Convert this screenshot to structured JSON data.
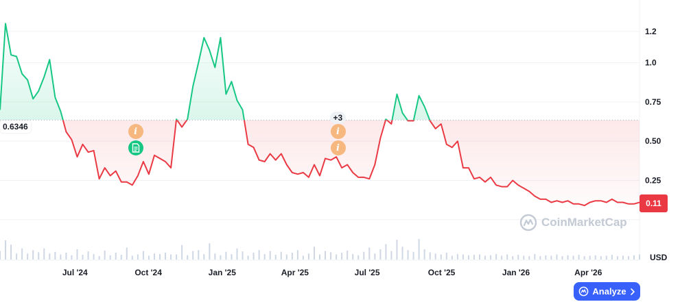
{
  "chart_data": {
    "type": "area",
    "unit_label": "USD",
    "reference_value": 0.6346,
    "reference_label": "0.6346",
    "current_value": 0.11,
    "current_label": "0.11",
    "ylim": [
      -0.25,
      1.4
    ],
    "y_ticks": [
      0.25,
      0.5,
      0.75,
      1.0,
      1.2
    ],
    "y_tick_labels": [
      "0.25",
      "0.50",
      "0.75",
      "1.0",
      "1.2"
    ],
    "xlim": [
      0,
      116
    ],
    "x_ticks": [
      {
        "pos": 13.6,
        "label": "Jul '24"
      },
      {
        "pos": 26.9,
        "label": "Oct '24"
      },
      {
        "pos": 40.3,
        "label": "Jan '25"
      },
      {
        "pos": 53.5,
        "label": "Apr '25"
      },
      {
        "pos": 66.6,
        "label": "Jul '25"
      },
      {
        "pos": 80.1,
        "label": "Oct '25"
      },
      {
        "pos": 93.6,
        "label": "Jan '26"
      },
      {
        "pos": 106.7,
        "label": "Apr '26"
      }
    ],
    "week_index": [
      0,
      1,
      2,
      3,
      4,
      5,
      6,
      7,
      8,
      9,
      10,
      11,
      12,
      13,
      14,
      15,
      16,
      17,
      18,
      19,
      20,
      21,
      22,
      23,
      24,
      25,
      26,
      27,
      28,
      29,
      30,
      31,
      32,
      33,
      34,
      35,
      36,
      37,
      38,
      39,
      40,
      41,
      42,
      43,
      44,
      45,
      46,
      47,
      48,
      49,
      50,
      51,
      52,
      53,
      54,
      55,
      56,
      57,
      58,
      59,
      60,
      61,
      62,
      63,
      64,
      65,
      66,
      67,
      68,
      69,
      70,
      71,
      72,
      73,
      74,
      75,
      76,
      77,
      78,
      79,
      80,
      81,
      82,
      83,
      84,
      85,
      86,
      87,
      88,
      89,
      90,
      91,
      92,
      93,
      94,
      95,
      96,
      97,
      98,
      99,
      100,
      101,
      102,
      103,
      104,
      105,
      106,
      107,
      108,
      109,
      110,
      111,
      112,
      113,
      114,
      115,
      116
    ],
    "values": [
      0.7,
      1.25,
      1.05,
      1.04,
      0.93,
      0.89,
      0.77,
      0.82,
      0.91,
      1.02,
      0.78,
      0.69,
      0.56,
      0.51,
      0.4,
      0.48,
      0.43,
      0.44,
      0.26,
      0.33,
      0.28,
      0.31,
      0.24,
      0.24,
      0.22,
      0.28,
      0.37,
      0.29,
      0.41,
      0.39,
      0.37,
      0.33,
      0.64,
      0.59,
      0.64,
      0.85,
      1.0,
      1.16,
      1.08,
      0.97,
      1.16,
      0.8,
      0.88,
      0.76,
      0.7,
      0.48,
      0.46,
      0.38,
      0.37,
      0.42,
      0.38,
      0.42,
      0.35,
      0.3,
      0.29,
      0.3,
      0.27,
      0.35,
      0.28,
      0.39,
      0.38,
      0.4,
      0.33,
      0.35,
      0.3,
      0.27,
      0.27,
      0.26,
      0.35,
      0.52,
      0.64,
      0.61,
      0.8,
      0.68,
      0.63,
      0.63,
      0.79,
      0.72,
      0.63,
      0.58,
      0.61,
      0.48,
      0.46,
      0.5,
      0.33,
      0.33,
      0.26,
      0.27,
      0.24,
      0.27,
      0.22,
      0.21,
      0.21,
      0.25,
      0.22,
      0.2,
      0.18,
      0.15,
      0.13,
      0.13,
      0.11,
      0.12,
      0.11,
      0.12,
      0.1,
      0.1,
      0.09,
      0.11,
      0.12,
      0.12,
      0.11,
      0.13,
      0.11,
      0.11,
      0.1,
      0.1,
      0.11
    ],
    "volume": [
      20,
      45,
      35,
      14,
      26,
      14,
      22,
      17,
      26,
      14,
      18,
      12,
      16,
      10,
      24,
      11,
      19,
      13,
      8,
      21,
      10,
      16,
      11,
      28,
      9,
      12,
      20,
      9,
      14,
      13,
      16,
      12,
      12,
      34,
      10,
      20,
      22,
      13,
      38,
      14,
      10,
      18,
      13,
      26,
      19,
      9,
      16,
      22,
      13,
      20,
      11,
      18,
      12,
      16,
      22,
      9,
      14,
      30,
      12,
      20,
      17,
      12,
      16,
      21,
      13,
      10,
      18,
      28,
      14,
      24,
      36,
      20,
      46,
      30,
      22,
      18,
      48,
      24,
      17,
      14,
      12,
      16,
      9,
      13,
      12,
      10,
      11,
      12,
      9,
      10,
      13,
      9,
      12,
      8,
      11,
      9,
      8,
      13,
      8,
      10,
      9,
      12,
      8,
      10,
      9,
      11,
      8,
      9,
      10,
      8,
      9,
      11,
      8,
      9,
      8,
      10,
      12
    ],
    "events": [
      {
        "pos": 24.6,
        "type": "info",
        "label": "i"
      },
      {
        "pos": 24.6,
        "type": "doc",
        "label": ""
      },
      {
        "pos": 61.3,
        "type": "cluster",
        "label": "+3"
      },
      {
        "pos": 61.3,
        "type": "info",
        "label": "i"
      },
      {
        "pos": 61.3,
        "type": "info",
        "label": "i"
      }
    ]
  },
  "colors": {
    "up_line": "#16c784",
    "down_line": "#ea3943",
    "up_fill": "#16c784",
    "down_fill": "#ea3943",
    "grid": "#eff2f5",
    "badge_bg": "#ea3943",
    "analyze_bg": "#3861fb",
    "volume_bar": "#cfd6e4"
  },
  "watermark": {
    "text": "CoinMarketCap",
    "icon": "coinmarketcap-logo-icon"
  },
  "analyze_button": {
    "label": "Analyze",
    "icon": "chevron-right-icon",
    "logo_icon": "ai-logo-icon"
  }
}
